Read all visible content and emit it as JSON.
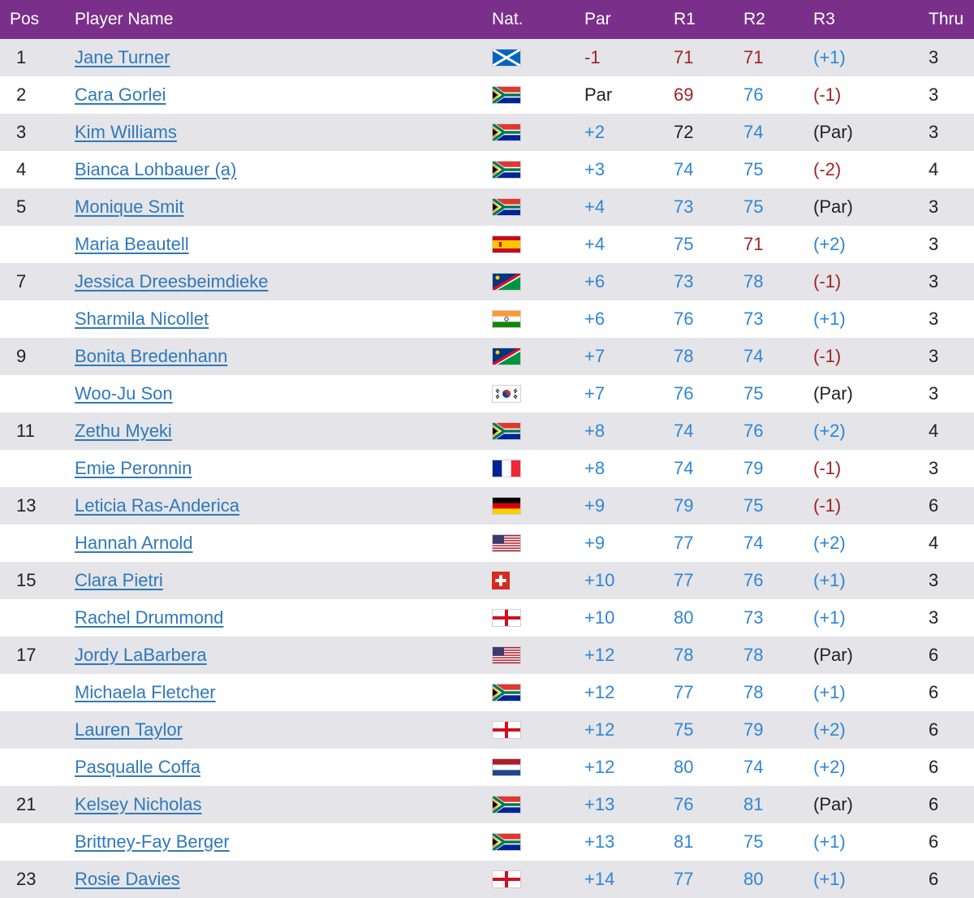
{
  "colors": {
    "header_bg": "#7a2f8a",
    "row_alt": "#e4e4e9",
    "link": "#2f79b9",
    "blue": "#2f86d3",
    "red": "#a02323",
    "black": "#222222"
  },
  "headers": {
    "pos": "Pos",
    "name": "Player Name",
    "nat": "Nat.",
    "par": "Par",
    "r1": "R1",
    "r2": "R2",
    "r3": "R3",
    "thru": "Thru"
  },
  "rows": [
    {
      "pos": "1",
      "name": "Jane Turner",
      "flag": "scotland",
      "par": "-1",
      "par_color": "red",
      "r1": "71",
      "r1_color": "red",
      "r2": "71",
      "r2_color": "red",
      "r3": "(+1)",
      "r3_color": "blue",
      "thru": "3"
    },
    {
      "pos": "2",
      "name": "Cara Gorlei",
      "flag": "south-africa",
      "par": "Par",
      "par_color": "black",
      "r1": "69",
      "r1_color": "red",
      "r2": "76",
      "r2_color": "blue",
      "r3": "(-1)",
      "r3_color": "red",
      "thru": "3"
    },
    {
      "pos": "3",
      "name": "Kim Williams",
      "flag": "south-africa",
      "par": "+2",
      "par_color": "blue",
      "r1": "72",
      "r1_color": "black",
      "r2": "74",
      "r2_color": "blue",
      "r3": "(Par)",
      "r3_color": "black",
      "thru": "3"
    },
    {
      "pos": "4",
      "name": "Bianca Lohbauer (a)",
      "flag": "south-africa",
      "par": "+3",
      "par_color": "blue",
      "r1": "74",
      "r1_color": "blue",
      "r2": "75",
      "r2_color": "blue",
      "r3": "(-2)",
      "r3_color": "red",
      "thru": "4"
    },
    {
      "pos": "5",
      "name": "Monique Smit",
      "flag": "south-africa",
      "par": "+4",
      "par_color": "blue",
      "r1": "73",
      "r1_color": "blue",
      "r2": "75",
      "r2_color": "blue",
      "r3": "(Par)",
      "r3_color": "black",
      "thru": "3"
    },
    {
      "pos": "",
      "name": "Maria Beautell",
      "flag": "spain",
      "par": "+4",
      "par_color": "blue",
      "r1": "75",
      "r1_color": "blue",
      "r2": "71",
      "r2_color": "red",
      "r3": "(+2)",
      "r3_color": "blue",
      "thru": "3"
    },
    {
      "pos": "7",
      "name": "Jessica Dreesbeimdieke",
      "flag": "namibia",
      "par": "+6",
      "par_color": "blue",
      "r1": "73",
      "r1_color": "blue",
      "r2": "78",
      "r2_color": "blue",
      "r3": "(-1)",
      "r3_color": "red",
      "thru": "3"
    },
    {
      "pos": "",
      "name": "Sharmila Nicollet",
      "flag": "india",
      "par": "+6",
      "par_color": "blue",
      "r1": "76",
      "r1_color": "blue",
      "r2": "73",
      "r2_color": "blue",
      "r3": "(+1)",
      "r3_color": "blue",
      "thru": "3"
    },
    {
      "pos": "9",
      "name": "Bonita Bredenhann",
      "flag": "namibia",
      "par": "+7",
      "par_color": "blue",
      "r1": "78",
      "r1_color": "blue",
      "r2": "74",
      "r2_color": "blue",
      "r3": "(-1)",
      "r3_color": "red",
      "thru": "3"
    },
    {
      "pos": "",
      "name": "Woo-Ju Son",
      "flag": "south-korea",
      "par": "+7",
      "par_color": "blue",
      "r1": "76",
      "r1_color": "blue",
      "r2": "75",
      "r2_color": "blue",
      "r3": "(Par)",
      "r3_color": "black",
      "thru": "3"
    },
    {
      "pos": "11",
      "name": "Zethu Myeki",
      "flag": "south-africa",
      "par": "+8",
      "par_color": "blue",
      "r1": "74",
      "r1_color": "blue",
      "r2": "76",
      "r2_color": "blue",
      "r3": "(+2)",
      "r3_color": "blue",
      "thru": "4"
    },
    {
      "pos": "",
      "name": "Emie Peronnin",
      "flag": "france",
      "par": "+8",
      "par_color": "blue",
      "r1": "74",
      "r1_color": "blue",
      "r2": "79",
      "r2_color": "blue",
      "r3": "(-1)",
      "r3_color": "red",
      "thru": "3"
    },
    {
      "pos": "13",
      "name": "Leticia Ras-Anderica",
      "flag": "germany",
      "par": "+9",
      "par_color": "blue",
      "r1": "79",
      "r1_color": "blue",
      "r2": "75",
      "r2_color": "blue",
      "r3": "(-1)",
      "r3_color": "red",
      "thru": "6"
    },
    {
      "pos": "",
      "name": "Hannah Arnold",
      "flag": "usa",
      "par": "+9",
      "par_color": "blue",
      "r1": "77",
      "r1_color": "blue",
      "r2": "74",
      "r2_color": "blue",
      "r3": "(+2)",
      "r3_color": "blue",
      "thru": "4"
    },
    {
      "pos": "15",
      "name": "Clara Pietri",
      "flag": "switzerland",
      "par": "+10",
      "par_color": "blue",
      "r1": "77",
      "r1_color": "blue",
      "r2": "76",
      "r2_color": "blue",
      "r3": "(+1)",
      "r3_color": "blue",
      "thru": "3"
    },
    {
      "pos": "",
      "name": "Rachel Drummond",
      "flag": "england",
      "par": "+10",
      "par_color": "blue",
      "r1": "80",
      "r1_color": "blue",
      "r2": "73",
      "r2_color": "blue",
      "r3": "(+1)",
      "r3_color": "blue",
      "thru": "3"
    },
    {
      "pos": "17",
      "name": "Jordy LaBarbera",
      "flag": "usa",
      "par": "+12",
      "par_color": "blue",
      "r1": "78",
      "r1_color": "blue",
      "r2": "78",
      "r2_color": "blue",
      "r3": "(Par)",
      "r3_color": "black",
      "thru": "6"
    },
    {
      "pos": "",
      "name": "Michaela Fletcher",
      "flag": "south-africa",
      "par": "+12",
      "par_color": "blue",
      "r1": "77",
      "r1_color": "blue",
      "r2": "78",
      "r2_color": "blue",
      "r3": "(+1)",
      "r3_color": "blue",
      "thru": "6"
    },
    {
      "pos": "",
      "name": "Lauren Taylor",
      "flag": "england",
      "par": "+12",
      "par_color": "blue",
      "r1": "75",
      "r1_color": "blue",
      "r2": "79",
      "r2_color": "blue",
      "r3": "(+2)",
      "r3_color": "blue",
      "thru": "6"
    },
    {
      "pos": "",
      "name": "Pasqualle Coffa",
      "flag": "netherlands",
      "par": "+12",
      "par_color": "blue",
      "r1": "80",
      "r1_color": "blue",
      "r2": "74",
      "r2_color": "blue",
      "r3": "(+2)",
      "r3_color": "blue",
      "thru": "6"
    },
    {
      "pos": "21",
      "name": "Kelsey Nicholas",
      "flag": "south-africa",
      "par": "+13",
      "par_color": "blue",
      "r1": "76",
      "r1_color": "blue",
      "r2": "81",
      "r2_color": "blue",
      "r3": "(Par)",
      "r3_color": "black",
      "thru": "6"
    },
    {
      "pos": "",
      "name": "Brittney-Fay Berger",
      "flag": "south-africa",
      "par": "+13",
      "par_color": "blue",
      "r1": "81",
      "r1_color": "blue",
      "r2": "75",
      "r2_color": "blue",
      "r3": "(+1)",
      "r3_color": "blue",
      "thru": "6"
    },
    {
      "pos": "23",
      "name": "Rosie Davies",
      "flag": "england",
      "par": "+14",
      "par_color": "blue",
      "r1": "77",
      "r1_color": "blue",
      "r2": "80",
      "r2_color": "blue",
      "r3": "(+1)",
      "r3_color": "blue",
      "thru": "6"
    }
  ]
}
